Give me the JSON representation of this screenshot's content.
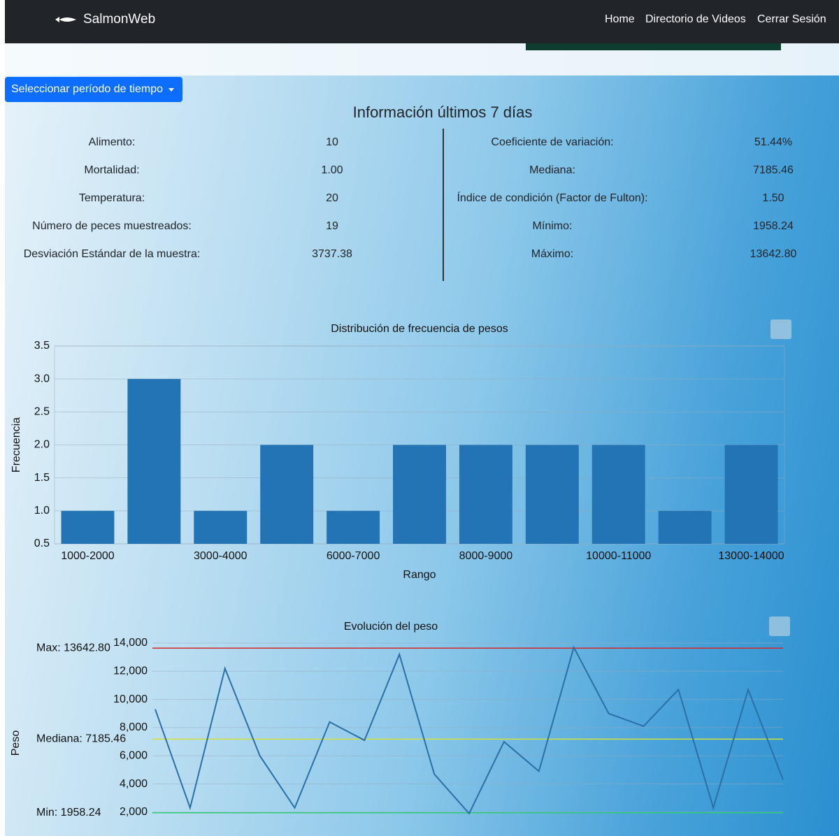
{
  "nav": {
    "brand": "SalmonWeb",
    "links": [
      "Home",
      "Directorio de Videos",
      "Cerrar Sesión"
    ]
  },
  "button": "Seleccionar período de tiempo",
  "heading": "Información últimos 7 días",
  "info": {
    "left": [
      {
        "label": "Alimento:",
        "value": "10"
      },
      {
        "label": "Mortalidad:",
        "value": "1.00"
      },
      {
        "label": "Temperatura:",
        "value": "20"
      },
      {
        "label": "Número de peces muestreados:",
        "value": "19"
      },
      {
        "label": "Desviación Estándar de la muestra:",
        "value": "3737.38"
      }
    ],
    "right": [
      {
        "label": "Coeficiente de variación:",
        "value": "51.44%"
      },
      {
        "label": "Mediana:",
        "value": "7185.46"
      },
      {
        "label": "Índice de condición (Factor de Fulton):",
        "value": "1.50"
      },
      {
        "label": "Mínimo:",
        "value": "1958.24"
      },
      {
        "label": "Máximo:",
        "value": "13642.80"
      }
    ]
  },
  "chart_data": [
    {
      "type": "bar",
      "title": "Distribución de frecuencia de pesos",
      "x_label": "Rango",
      "y_label": "Frecuencia",
      "categories": [
        "1000-2000",
        null,
        "3000-4000",
        null,
        "6000-7000",
        null,
        "8000-9000",
        null,
        "10000-11000",
        null,
        "13000-14000"
      ],
      "values": [
        1,
        3,
        1,
        2,
        1,
        2,
        2,
        2,
        2,
        1,
        2
      ],
      "color": "#2274b4",
      "ylim": [
        0.5,
        3.5
      ],
      "yticks": [
        0.5,
        {
          "value": 1,
          "label": "1.0"
        },
        1.5,
        {
          "value": 2,
          "label": "2.0"
        },
        2.5,
        {
          "value": 3,
          "label": "3.0"
        },
        3.5
      ],
      "grid": true
    },
    {
      "type": "line",
      "title": "Evolución del peso",
      "y_label": "Peso",
      "values": [
        9300,
        2300,
        12200,
        6000,
        2300,
        8400,
        7100,
        13200,
        4700,
        1900,
        7000,
        4900,
        13700,
        9000,
        8100,
        10700,
        2300,
        10700,
        4300
      ],
      "color": "#2a6fa8",
      "ylim": [
        1000,
        14000
      ],
      "yticks": [
        {
          "value": 2000,
          "label": "2,000"
        },
        {
          "value": 4000,
          "label": "4,000"
        },
        {
          "value": 6000,
          "label": "6,000"
        },
        {
          "value": 8000,
          "label": "8,000"
        },
        {
          "value": 10000,
          "label": "10,000"
        },
        {
          "value": 12000,
          "label": "12,000"
        },
        {
          "value": 14000,
          "label": "14,000"
        }
      ],
      "grid": true,
      "reference_lines": [
        {
          "label": "Max: 13642.80",
          "value": 13642.8,
          "color": "#d62728"
        },
        {
          "label": "Mediana: 7185.46",
          "value": 7185.46,
          "color": "#d4e03a"
        },
        {
          "label": "Min: 1958.24",
          "value": 1958.24,
          "color": "#2ecc71"
        }
      ]
    }
  ]
}
